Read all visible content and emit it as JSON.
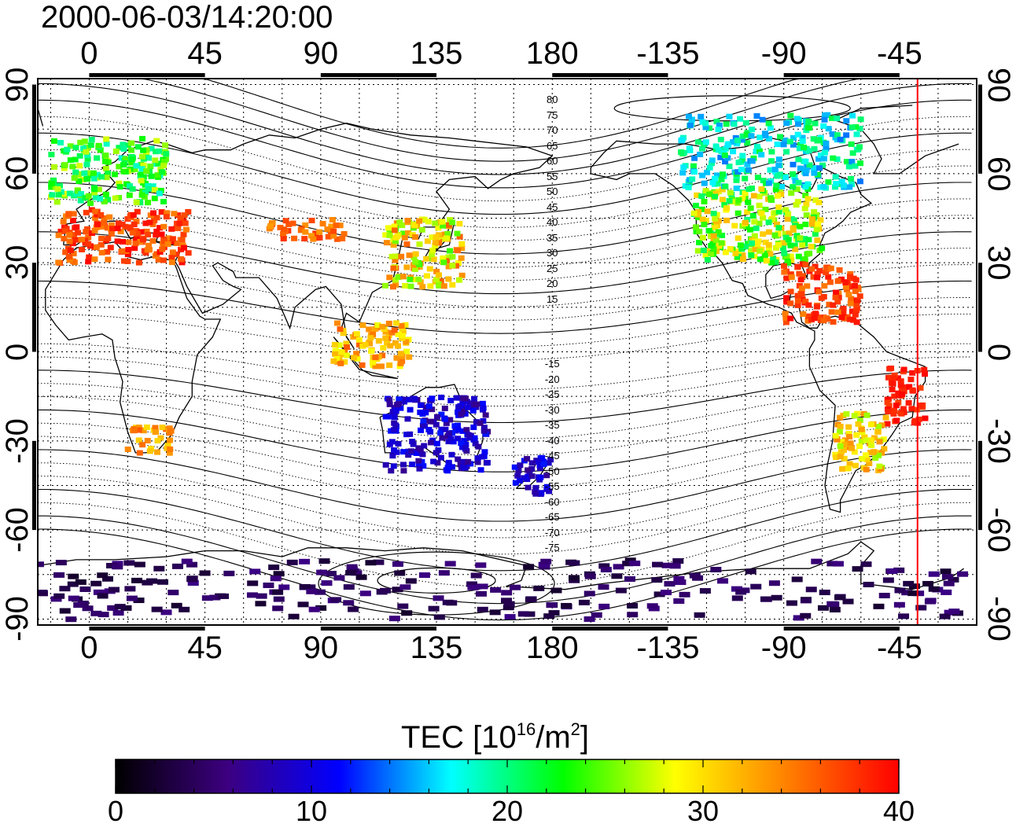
{
  "title": "2000-06-03/14:20:00",
  "map": {
    "lon_ticks_top": [
      "0",
      "45",
      "90",
      "135",
      "180",
      "-135",
      "-90",
      "-45"
    ],
    "lon_ticks_bottom": [
      "0",
      "45",
      "90",
      "135",
      "180",
      "-135",
      "-90",
      "-45"
    ],
    "lat_ticks_left": [
      "90",
      "60",
      "30",
      "0",
      "-30",
      "-60",
      "-90"
    ],
    "lat_ticks_right": [
      "90",
      "60",
      "30",
      "0",
      "-30",
      "-60",
      "-90"
    ],
    "lon_range": [
      -20,
      345
    ],
    "lat_range": [
      -92,
      92
    ],
    "terminator_lon": -38,
    "terminator_color": "#ff0000",
    "contour_labels_north": [
      "80",
      "75",
      "70",
      "65",
      "60",
      "55",
      "50",
      "45",
      "40",
      "35",
      "30",
      "25",
      "20",
      "15"
    ],
    "contour_labels_south": [
      "-15",
      "-20",
      "-25",
      "-30",
      "-35",
      "-40",
      "-45",
      "-50",
      "-55",
      "-60",
      "-65",
      "-70",
      "-75"
    ],
    "tec_clusters": [
      {
        "region": "Europe",
        "lon": [
          -15,
          30
        ],
        "lat": [
          50,
          72
        ],
        "tec": [
          18,
          28
        ]
      },
      {
        "region": "Mediterranean",
        "lon": [
          -12,
          40
        ],
        "lat": [
          30,
          48
        ],
        "tec": [
          34,
          40
        ]
      },
      {
        "region": "Central Asia",
        "lon": [
          70,
          100
        ],
        "lat": [
          38,
          45
        ],
        "tec": [
          33,
          38
        ]
      },
      {
        "region": "East Asia",
        "lon": [
          115,
          145
        ],
        "lat": [
          22,
          45
        ],
        "tec": [
          24,
          36
        ]
      },
      {
        "region": "Southeast Asia",
        "lon": [
          95,
          125
        ],
        "lat": [
          -5,
          10
        ],
        "tec": [
          28,
          36
        ]
      },
      {
        "region": "Australia",
        "lon": [
          115,
          155
        ],
        "lat": [
          -40,
          -15
        ],
        "tec": [
          6,
          12
        ]
      },
      {
        "region": "New Zealand",
        "lon": [
          165,
          180
        ],
        "lat": [
          -48,
          -35
        ],
        "tec": [
          6,
          12
        ]
      },
      {
        "region": "Southern Africa",
        "lon": [
          15,
          32
        ],
        "lat": [
          -35,
          -25
        ],
        "tec": [
          30,
          36
        ]
      },
      {
        "region": "North America",
        "lon": [
          -125,
          -75
        ],
        "lat": [
          30,
          55
        ],
        "tec": [
          20,
          32
        ]
      },
      {
        "region": "Canada",
        "lon": [
          -130,
          -60
        ],
        "lat": [
          55,
          80
        ],
        "tec": [
          14,
          22
        ]
      },
      {
        "region": "Caribbean",
        "lon": [
          -90,
          -60
        ],
        "lat": [
          10,
          30
        ],
        "tec": [
          34,
          40
        ]
      },
      {
        "region": "Brazil",
        "lon": [
          -50,
          -35
        ],
        "lat": [
          -25,
          -5
        ],
        "tec": [
          37,
          40
        ]
      },
      {
        "region": "South America",
        "lon": [
          -70,
          -50
        ],
        "lat": [
          -40,
          -20
        ],
        "tec": [
          26,
          34
        ]
      },
      {
        "region": "Antarctica",
        "lon": [
          -20,
          340
        ],
        "lat": [
          -90,
          -70
        ],
        "tec": [
          2,
          6
        ]
      }
    ]
  },
  "colorbar": {
    "title_main": "TEC  [10",
    "title_exp1": "16",
    "title_mid": "/m",
    "title_exp2": "2",
    "title_end": "]",
    "min": 0,
    "max": 40,
    "labels": [
      "0",
      "10",
      "20",
      "30",
      "40"
    ],
    "stops": [
      "#000000",
      "#3c0080",
      "#0000ff",
      "#00ffff",
      "#00ff00",
      "#ffff00",
      "#ff8000",
      "#ff0000"
    ]
  }
}
